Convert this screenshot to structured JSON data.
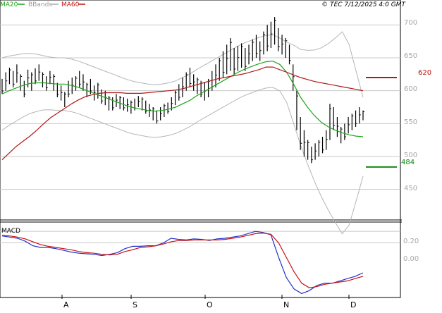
{
  "legend": {
    "ma20": {
      "label": "MA20",
      "color": "#1aa51a"
    },
    "bbands": {
      "label": "BBands",
      "color": "#9a9a9a"
    },
    "ma60": {
      "label": "MA60",
      "color": "#c01010"
    }
  },
  "copyright": "© TEC 7/12/2025 4:0 GMT",
  "price_axis": {
    "ticks": [
      "700",
      "650",
      "600",
      "550",
      "500",
      "450"
    ]
  },
  "macd_panel": {
    "label": "MACD",
    "ticks": [
      "0.20",
      "0.00"
    ]
  },
  "x_axis": {
    "labels": [
      "A",
      "S",
      "O",
      "N",
      "D"
    ]
  },
  "levels": [
    {
      "label": "620",
      "value": 620,
      "color": "#c01010"
    },
    {
      "label": "484",
      "value": 484,
      "color": "#108a10"
    }
  ],
  "colors": {
    "up": "#000000",
    "ma20": "#1aa51a",
    "ma60": "#b01818",
    "bb": "#b5b5b5",
    "macd": "#2233cc",
    "signal": "#cc1111",
    "grid": "#c8c8c8"
  },
  "chart_data": [
    {
      "type": "line",
      "title": "",
      "ylim": [
        410,
        725
      ],
      "x_labels": [
        "A",
        "S",
        "O",
        "N",
        "D"
      ],
      "bars_hl": [
        [
          595,
          618
        ],
        [
          600,
          628
        ],
        [
          610,
          635
        ],
        [
          605,
          630
        ],
        [
          612,
          640
        ],
        [
          600,
          625
        ],
        [
          590,
          615
        ],
        [
          605,
          632
        ],
        [
          600,
          628
        ],
        [
          610,
          634
        ],
        [
          615,
          640
        ],
        [
          605,
          628
        ],
        [
          600,
          622
        ],
        [
          610,
          630
        ],
        [
          600,
          625
        ],
        [
          590,
          612
        ],
        [
          585,
          608
        ],
        [
          575,
          598
        ],
        [
          590,
          615
        ],
        [
          595,
          620
        ],
        [
          600,
          622
        ],
        [
          605,
          630
        ],
        [
          600,
          625
        ],
        [
          590,
          612
        ],
        [
          595,
          618
        ],
        [
          585,
          608
        ],
        [
          588,
          612
        ],
        [
          580,
          602
        ],
        [
          578,
          600
        ],
        [
          570,
          592
        ],
        [
          570,
          590
        ],
        [
          575,
          595
        ],
        [
          572,
          592
        ],
        [
          570,
          590
        ],
        [
          568,
          588
        ],
        [
          565,
          585
        ],
        [
          570,
          588
        ],
        [
          575,
          592
        ],
        [
          570,
          590
        ],
        [
          565,
          585
        ],
        [
          560,
          580
        ],
        [
          555,
          575
        ],
        [
          550,
          570
        ],
        [
          555,
          575
        ],
        [
          560,
          580
        ],
        [
          565,
          582
        ],
        [
          570,
          590
        ],
        [
          578,
          600
        ],
        [
          585,
          610
        ],
        [
          590,
          620
        ],
        [
          600,
          628
        ],
        [
          605,
          635
        ],
        [
          600,
          625
        ],
        [
          595,
          620
        ],
        [
          590,
          615
        ],
        [
          585,
          612
        ],
        [
          590,
          618
        ],
        [
          600,
          630
        ],
        [
          605,
          640
        ],
        [
          615,
          650
        ],
        [
          620,
          660
        ],
        [
          625,
          670
        ],
        [
          630,
          680
        ],
        [
          625,
          665
        ],
        [
          630,
          668
        ],
        [
          635,
          672
        ],
        [
          630,
          665
        ],
        [
          640,
          670
        ],
        [
          645,
          678
        ],
        [
          650,
          685
        ],
        [
          645,
          675
        ],
        [
          655,
          690
        ],
        [
          660,
          700
        ],
        [
          665,
          705
        ],
        [
          670,
          712
        ],
        [
          660,
          695
        ],
        [
          655,
          685
        ],
        [
          650,
          680
        ],
        [
          640,
          670
        ],
        [
          600,
          640
        ],
        [
          540,
          600
        ],
        [
          510,
          560
        ],
        [
          500,
          540
        ],
        [
          495,
          525
        ],
        [
          490,
          515
        ],
        [
          495,
          520
        ],
        [
          500,
          525
        ],
        [
          505,
          530
        ],
        [
          510,
          540
        ],
        [
          525,
          580
        ],
        [
          540,
          575
        ],
        [
          530,
          560
        ],
        [
          520,
          545
        ],
        [
          525,
          550
        ],
        [
          535,
          560
        ],
        [
          540,
          565
        ],
        [
          545,
          570
        ],
        [
          550,
          575
        ],
        [
          555,
          570
        ]
      ],
      "series": [
        {
          "name": "MA20",
          "values": [
            595,
            600,
            604,
            608,
            611,
            612,
            612,
            611,
            610,
            610,
            608,
            605,
            601,
            597,
            593,
            589,
            585,
            581,
            577,
            574,
            572,
            570,
            569,
            570,
            572,
            575,
            580,
            585,
            592,
            598,
            604,
            610,
            616,
            622,
            628,
            633,
            637,
            641,
            644,
            645,
            640,
            628,
            610,
            590,
            575,
            562,
            552,
            545,
            540,
            536,
            533,
            531,
            530
          ]
        },
        {
          "name": "MA60",
          "values": [
            495,
            505,
            515,
            523,
            531,
            540,
            550,
            559,
            566,
            573,
            580,
            586,
            591,
            594,
            596,
            597,
            597,
            597,
            596,
            596,
            596,
            597,
            598,
            599,
            600,
            601,
            603,
            606,
            609,
            612,
            615,
            618,
            620,
            622,
            624,
            626,
            629,
            632,
            636,
            636,
            632,
            628,
            624,
            620,
            617,
            614,
            612,
            610,
            608,
            606,
            604,
            602,
            600
          ]
        }
      ]
    },
    {
      "type": "line",
      "title": "",
      "ylim": [
        -0.9,
        0.3
      ],
      "series": [
        {
          "name": "MACD",
          "values": [
            0.12,
            0.1,
            0.08,
            0.03,
            -0.05,
            -0.08,
            -0.08,
            -0.1,
            -0.13,
            -0.16,
            -0.18,
            -0.19,
            -0.2,
            -0.22,
            -0.2,
            -0.17,
            -0.1,
            -0.06,
            -0.06,
            -0.05,
            -0.05,
            0.0,
            0.08,
            0.06,
            0.05,
            0.07,
            0.06,
            0.04,
            0.07,
            0.08,
            0.1,
            0.12,
            0.16,
            0.2,
            0.18,
            0.14,
            -0.25,
            -0.6,
            -0.8,
            -0.88,
            -0.83,
            -0.74,
            -0.7,
            -0.7,
            -0.66,
            -0.62,
            -0.58,
            -0.52
          ]
        },
        {
          "name": "Signal",
          "values": [
            0.13,
            0.12,
            0.1,
            0.07,
            0.02,
            -0.03,
            -0.06,
            -0.08,
            -0.1,
            -0.12,
            -0.15,
            -0.17,
            -0.18,
            -0.2,
            -0.21,
            -0.2,
            -0.15,
            -0.12,
            -0.08,
            -0.07,
            -0.05,
            -0.02,
            0.02,
            0.04,
            0.04,
            0.05,
            0.05,
            0.05,
            0.05,
            0.06,
            0.08,
            0.1,
            0.13,
            0.16,
            0.17,
            0.15,
            0.0,
            -0.25,
            -0.5,
            -0.7,
            -0.78,
            -0.76,
            -0.72,
            -0.7,
            -0.68,
            -0.66,
            -0.62,
            -0.58
          ]
        }
      ]
    }
  ]
}
